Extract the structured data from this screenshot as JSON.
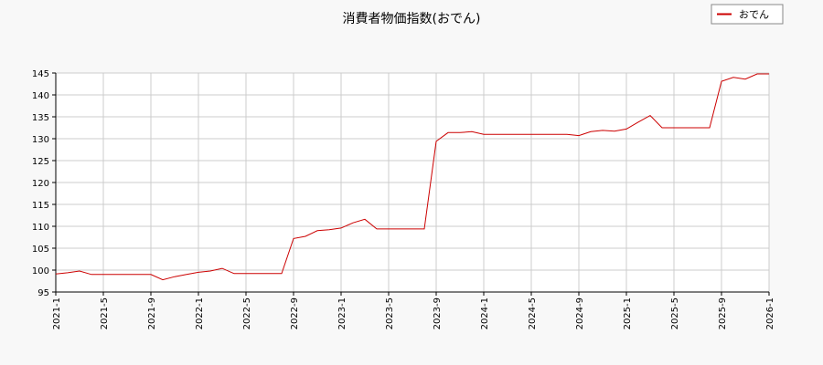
{
  "chart_data": {
    "type": "line",
    "title": "消費者物価指数(おでん)",
    "legend": {
      "position": "top-right",
      "entries": [
        "おでん"
      ]
    },
    "x_ticks": [
      "2021-1",
      "2021-5",
      "2021-9",
      "2022-1",
      "2022-5",
      "2022-9",
      "2023-1",
      "2023-5",
      "2023-9",
      "2024-1",
      "2024-5",
      "2024-9",
      "2025-1",
      "2025-5",
      "2025-9",
      "2026-1"
    ],
    "x_range": [
      "2021-01",
      "2026-01"
    ],
    "ylim": [
      95,
      145
    ],
    "y_ticks": [
      95,
      100,
      105,
      110,
      115,
      120,
      125,
      130,
      135,
      140,
      145
    ],
    "grid": true,
    "series": [
      {
        "name": "おでん",
        "color": "#cc0000",
        "x": [
          "2021-01",
          "2021-02",
          "2021-03",
          "2021-04",
          "2021-05",
          "2021-06",
          "2021-07",
          "2021-08",
          "2021-09",
          "2021-10",
          "2021-11",
          "2021-12",
          "2022-01",
          "2022-02",
          "2022-03",
          "2022-04",
          "2022-05",
          "2022-06",
          "2022-07",
          "2022-08",
          "2022-09",
          "2022-10",
          "2022-11",
          "2022-12",
          "2023-01",
          "2023-02",
          "2023-03",
          "2023-04",
          "2023-05",
          "2023-06",
          "2023-07",
          "2023-08",
          "2023-09",
          "2023-10",
          "2023-11",
          "2023-12",
          "2024-01",
          "2024-02",
          "2024-03",
          "2024-04",
          "2024-05",
          "2024-06",
          "2024-07",
          "2024-08",
          "2024-09",
          "2024-10",
          "2024-11",
          "2024-12",
          "2025-01",
          "2025-02",
          "2025-03",
          "2025-04",
          "2025-05",
          "2025-06",
          "2025-07",
          "2025-08",
          "2025-09",
          "2025-10",
          "2025-11",
          "2025-12",
          "2026-01"
        ],
        "values": [
          99.1,
          99.4,
          99.8,
          99.0,
          99.0,
          99.0,
          99.0,
          99.0,
          99.0,
          97.8,
          98.5,
          99.0,
          99.5,
          99.8,
          100.4,
          99.2,
          99.2,
          99.2,
          99.2,
          99.2,
          107.2,
          107.7,
          109.0,
          109.2,
          109.6,
          110.8,
          111.6,
          109.4,
          109.4,
          109.4,
          109.4,
          109.4,
          129.4,
          131.4,
          131.4,
          131.6,
          131.0,
          131.0,
          131.0,
          131.0,
          131.0,
          131.0,
          131.0,
          131.0,
          130.7,
          131.6,
          131.9,
          131.7,
          132.2,
          133.8,
          135.3,
          132.5,
          132.5,
          132.5,
          132.5,
          132.5,
          143.1,
          144.0,
          143.6,
          144.8,
          144.8
        ]
      }
    ]
  }
}
